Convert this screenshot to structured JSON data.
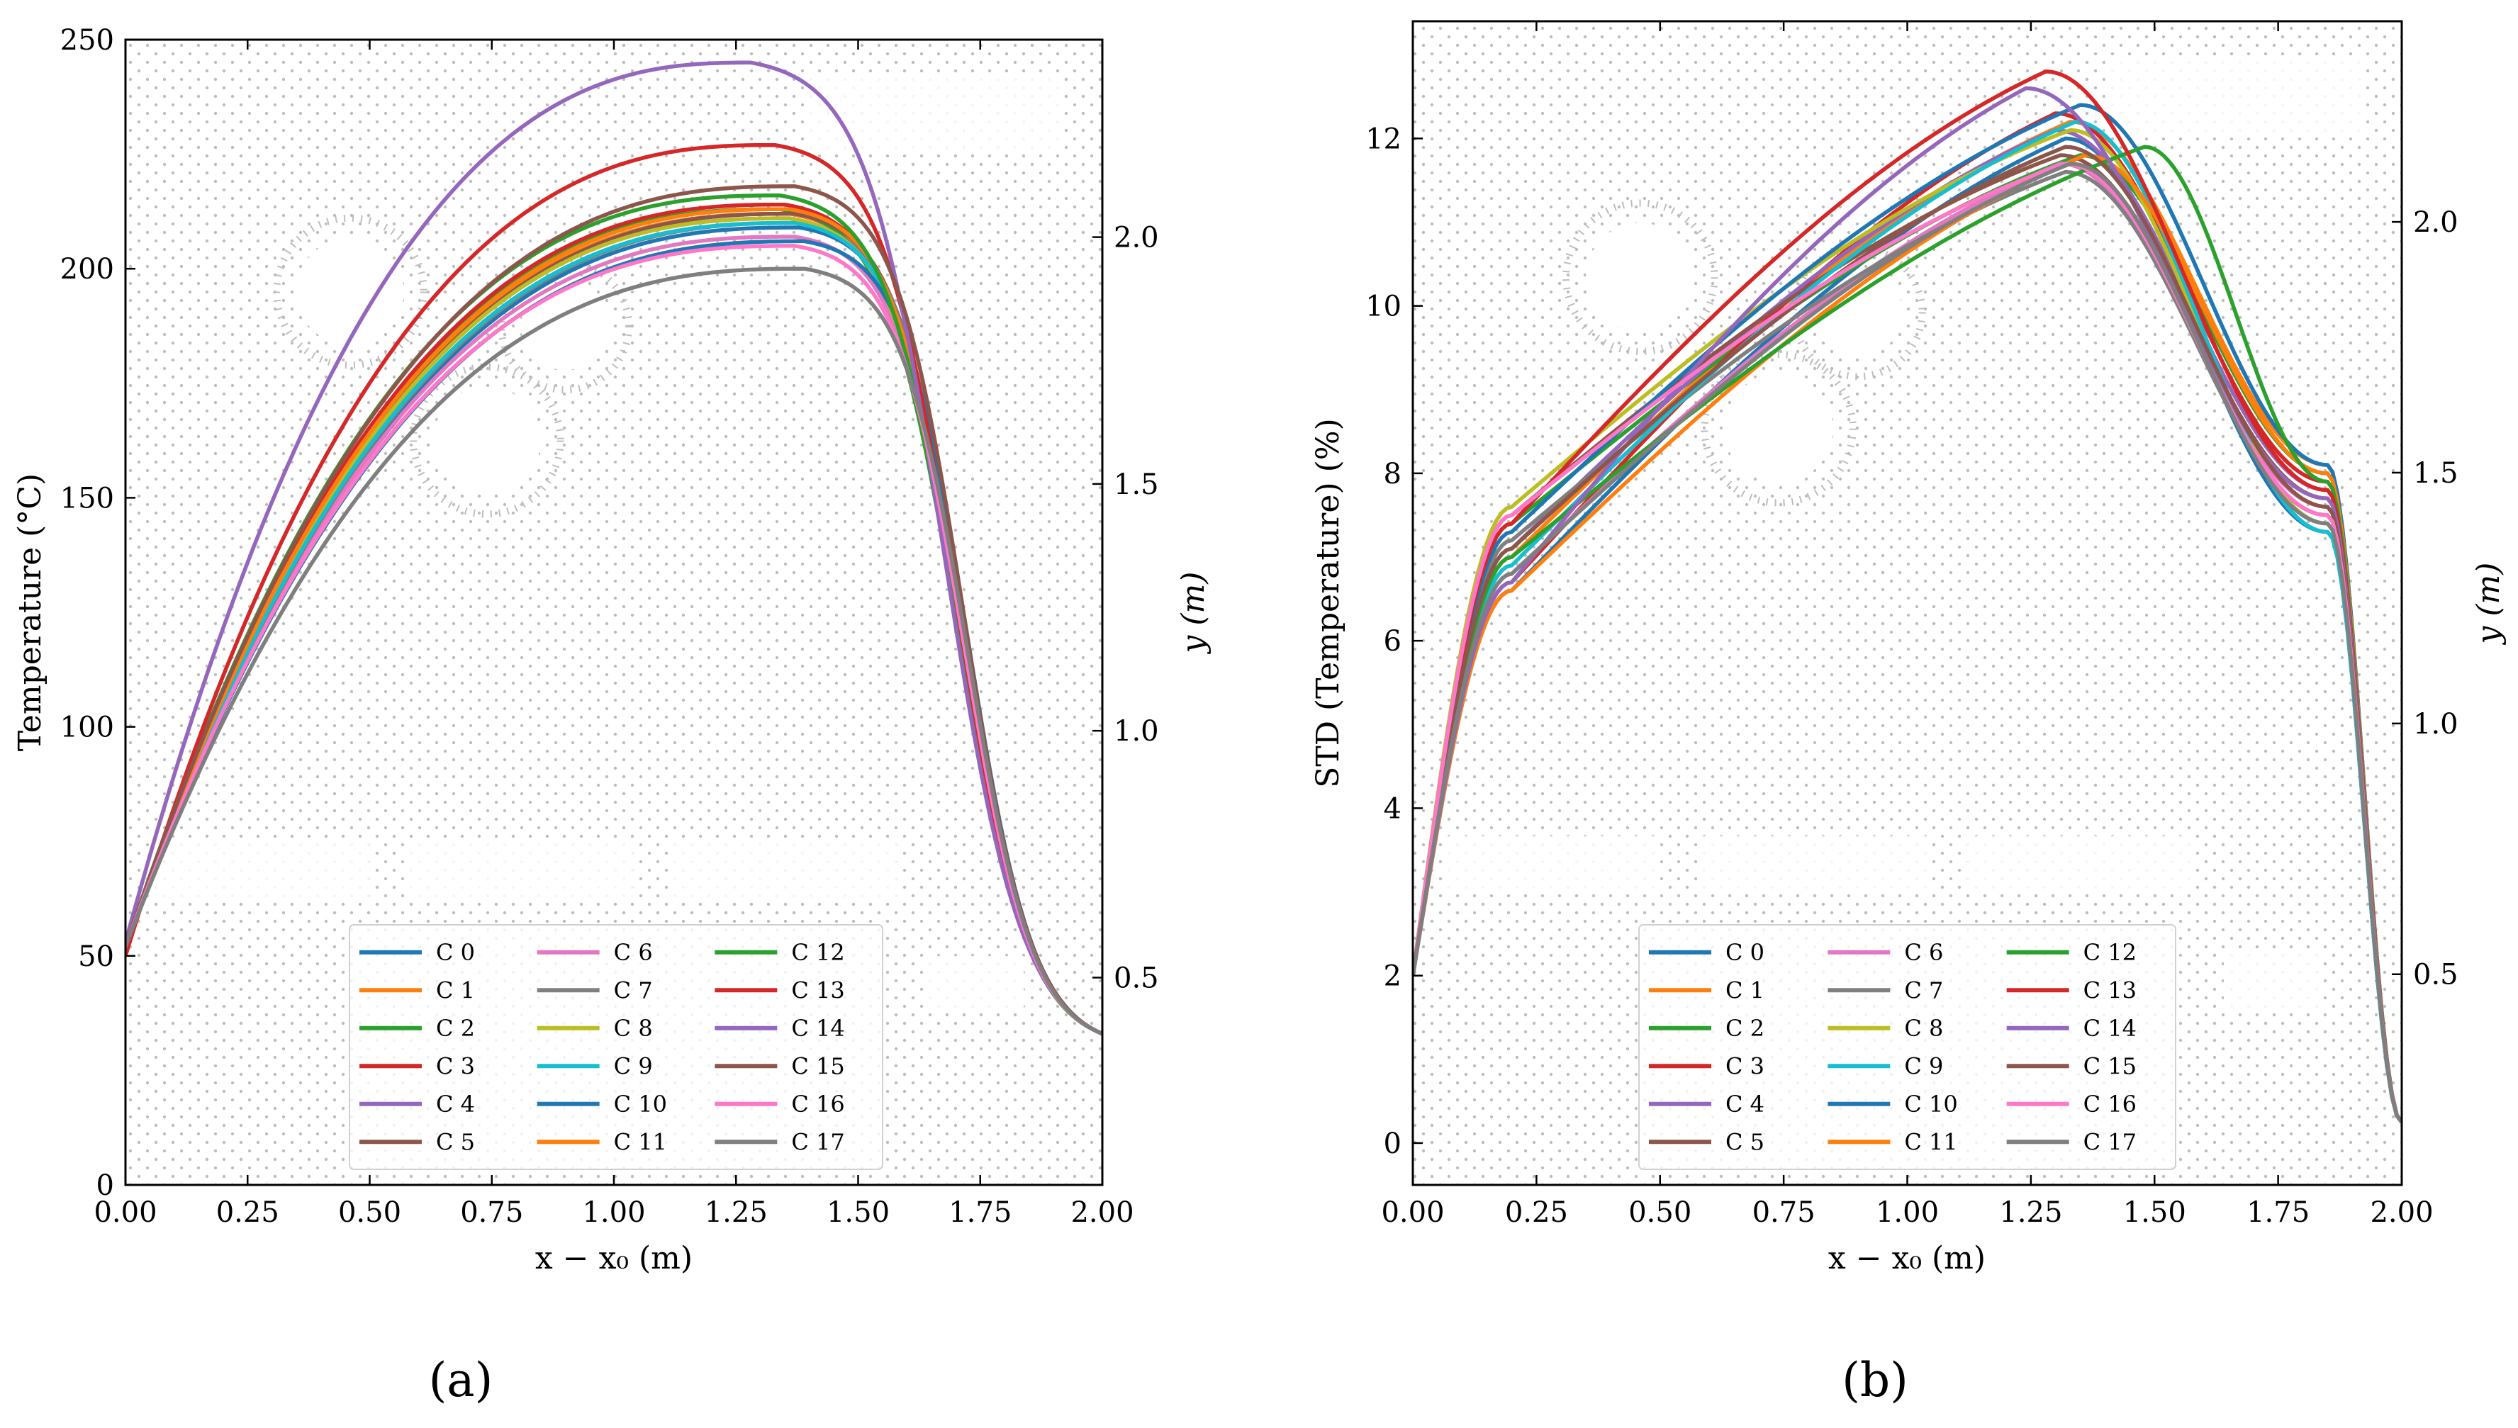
{
  "panels": [
    {
      "label": "(a)"
    },
    {
      "label": "(b)"
    }
  ],
  "colors": {
    "C0": "#1f77b4",
    "C1": "#ff7f0e",
    "C2": "#2ca02c",
    "C3": "#d62728",
    "C4": "#9467bd",
    "C5": "#8c564b",
    "C6": "#e377c2",
    "C7": "#7f7f7f",
    "C8": "#bcbd22",
    "C9": "#17becf",
    "C10": "#1f77b4",
    "C11": "#ff7f0e",
    "C12": "#2ca02c",
    "C13": "#d62728",
    "C14": "#9467bd",
    "C15": "#8c564b",
    "C16": "#ff77c8",
    "C17": "#7f7f7f",
    "mesh": "#bdbdbd"
  },
  "chart_data": [
    {
      "type": "line",
      "panel": "(a)",
      "title": "",
      "xlabel": "x − x₀ (m)",
      "ylabel": "Temperature (°C)",
      "y2label": "y (m)",
      "xlim": [
        0,
        2.0
      ],
      "ylim": [
        0,
        250
      ],
      "y2lim": [
        0.08,
        2.4
      ],
      "xticks": [
        "0.00",
        "0.25",
        "0.50",
        "0.75",
        "1.00",
        "1.25",
        "1.50",
        "1.75",
        "2.00"
      ],
      "yticks": [
        "0",
        "50",
        "100",
        "150",
        "200",
        "250"
      ],
      "y2ticks": [
        "0.5",
        "1.0",
        "1.5",
        "2.0"
      ],
      "legend": "lower center, 3 columns",
      "series": [
        {
          "name": "C 0",
          "peak_x": 1.38,
          "peak": 209,
          "start": 52
        },
        {
          "name": "C 1",
          "peak_x": 1.36,
          "peak": 212,
          "start": 52
        },
        {
          "name": "C 2",
          "peak_x": 1.34,
          "peak": 213,
          "start": 52
        },
        {
          "name": "C 3",
          "peak_x": 1.35,
          "peak": 214,
          "start": 52
        },
        {
          "name": "C 4",
          "peak_x": 1.36,
          "peak": 211,
          "start": 52
        },
        {
          "name": "C 5",
          "peak_x": 1.37,
          "peak": 212,
          "start": 52
        },
        {
          "name": "C 6",
          "peak_x": 1.37,
          "peak": 207,
          "start": 52
        },
        {
          "name": "C 7",
          "peak_x": 1.38,
          "peak": 210,
          "start": 52
        },
        {
          "name": "C 8",
          "peak_x": 1.36,
          "peak": 211,
          "start": 52
        },
        {
          "name": "C 9",
          "peak_x": 1.37,
          "peak": 210,
          "start": 52
        },
        {
          "name": "C 10",
          "peak_x": 1.39,
          "peak": 206,
          "start": 52
        },
        {
          "name": "C 11",
          "peak_x": 1.36,
          "peak": 213,
          "start": 52
        },
        {
          "name": "C 12",
          "peak_x": 1.34,
          "peak": 216,
          "start": 52
        },
        {
          "name": "C 13",
          "peak_x": 1.33,
          "peak": 227,
          "start": 50
        },
        {
          "name": "C 14",
          "peak_x": 1.28,
          "peak": 245,
          "start": 53
        },
        {
          "name": "C 15",
          "peak_x": 1.37,
          "peak": 218,
          "start": 52
        },
        {
          "name": "C 16",
          "peak_x": 1.37,
          "peak": 205,
          "start": 52
        },
        {
          "name": "C 17",
          "peak_x": 1.39,
          "peak": 200,
          "start": 52
        }
      ]
    },
    {
      "type": "line",
      "panel": "(b)",
      "title": "",
      "xlabel": "x − x₀ (m)",
      "ylabel": "STD (Temperature) (%)",
      "y2label": "y (m)",
      "xlim": [
        0,
        2.0
      ],
      "ylim": [
        -0.5,
        13.4
      ],
      "y2lim": [
        0.08,
        2.4
      ],
      "xticks": [
        "0.00",
        "0.25",
        "0.50",
        "0.75",
        "1.00",
        "1.25",
        "1.50",
        "1.75",
        "2.00"
      ],
      "yticks": [
        "0",
        "2",
        "4",
        "6",
        "8",
        "10",
        "12"
      ],
      "y2ticks": [
        "0.5",
        "1.0",
        "1.5",
        "2.0"
      ],
      "legend": "lower center, 3 columns",
      "series": [
        {
          "name": "C 0",
          "peak_x": 1.32,
          "peak": 12.0
        },
        {
          "name": "C 1",
          "peak_x": 1.33,
          "peak": 12.2
        },
        {
          "name": "C 2",
          "peak_x": 1.35,
          "peak": 11.8
        },
        {
          "name": "C 3",
          "peak_x": 1.3,
          "peak": 12.3
        },
        {
          "name": "C 4",
          "peak_x": 1.3,
          "peak": 12.1
        },
        {
          "name": "C 5",
          "peak_x": 1.31,
          "peak": 11.8
        },
        {
          "name": "C 6",
          "peak_x": 1.31,
          "peak": 11.7
        },
        {
          "name": "C 7",
          "peak_x": 1.32,
          "peak": 11.6
        },
        {
          "name": "C 8",
          "peak_x": 1.33,
          "peak": 12.1
        },
        {
          "name": "C 9",
          "peak_x": 1.34,
          "peak": 12.2
        },
        {
          "name": "C 10",
          "peak_x": 1.35,
          "peak": 12.4
        },
        {
          "name": "C 11",
          "peak_x": 1.36,
          "peak": 11.8
        },
        {
          "name": "C 12",
          "peak_x": 1.48,
          "peak": 11.9
        },
        {
          "name": "C 13",
          "peak_x": 1.28,
          "peak": 12.8
        },
        {
          "name": "C 14",
          "peak_x": 1.24,
          "peak": 12.6
        },
        {
          "name": "C 15",
          "peak_x": 1.32,
          "peak": 11.9
        },
        {
          "name": "C 16",
          "peak_x": 1.32,
          "peak": 11.7
        },
        {
          "name": "C 17",
          "peak_x": 1.33,
          "peak": 11.7
        }
      ]
    }
  ]
}
